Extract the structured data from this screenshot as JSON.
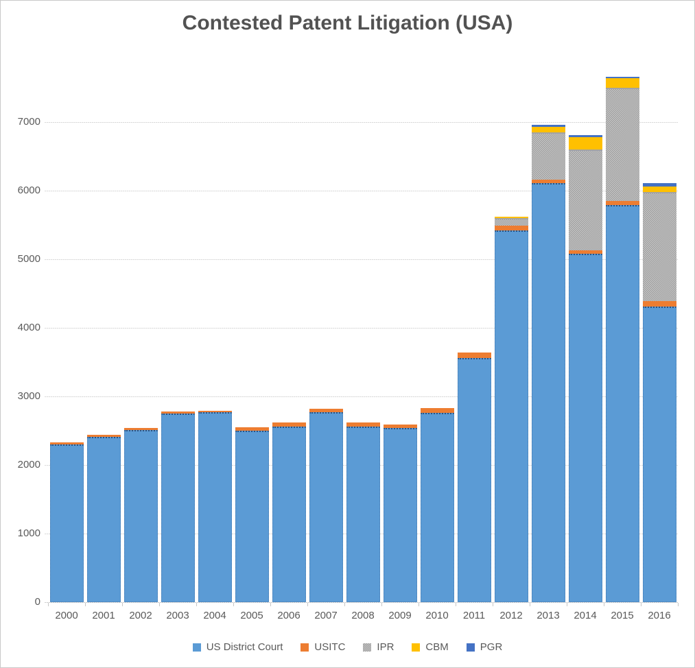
{
  "title": "Contested Patent Litigation (USA)",
  "colors": {
    "title_text": "#525252",
    "axis_text": "#595959",
    "gridline": "#d9d9d9",
    "frame_border": "#c9c9c9"
  },
  "chart_data": {
    "type": "bar",
    "stacked": true,
    "title": "Contested Patent Litigation (USA)",
    "xlabel": "",
    "ylabel": "",
    "grid": true,
    "legend_position": "bottom",
    "ylim": [
      0,
      7800
    ],
    "yticks": [
      0,
      1000,
      2000,
      3000,
      4000,
      5000,
      6000,
      7000
    ],
    "categories": [
      "2000",
      "2001",
      "2002",
      "2003",
      "2004",
      "2005",
      "2006",
      "2007",
      "2008",
      "2009",
      "2010",
      "2011",
      "2012",
      "2013",
      "2014",
      "2015",
      "2016"
    ],
    "series": [
      {
        "name": "US District Court",
        "color": "#5B9BD5",
        "values": [
          2300,
          2415,
          2510,
          2755,
          2770,
          2505,
          2560,
          2770,
          2565,
          2540,
          2765,
          3565,
          5420,
          6110,
          5080,
          5790,
          4310
        ]
      },
      {
        "name": "USITC",
        "color": "#ED7D31",
        "values": [
          30,
          30,
          30,
          25,
          25,
          45,
          60,
          50,
          55,
          55,
          65,
          80,
          75,
          50,
          55,
          65,
          85
        ]
      },
      {
        "name": "IPR",
        "color": "#ABABAB",
        "pattern": "checker",
        "values": [
          0,
          0,
          0,
          0,
          0,
          0,
          0,
          0,
          0,
          0,
          0,
          0,
          110,
          690,
          1470,
          1650,
          1585
        ]
      },
      {
        "name": "CBM",
        "color": "#FFC000",
        "values": [
          0,
          0,
          0,
          0,
          0,
          0,
          0,
          0,
          0,
          0,
          0,
          0,
          15,
          85,
          180,
          135,
          85
        ]
      },
      {
        "name": "PGR",
        "color": "#4472C4",
        "values": [
          0,
          0,
          0,
          0,
          0,
          0,
          0,
          0,
          0,
          0,
          0,
          0,
          0,
          25,
          25,
          25,
          45
        ]
      }
    ]
  }
}
